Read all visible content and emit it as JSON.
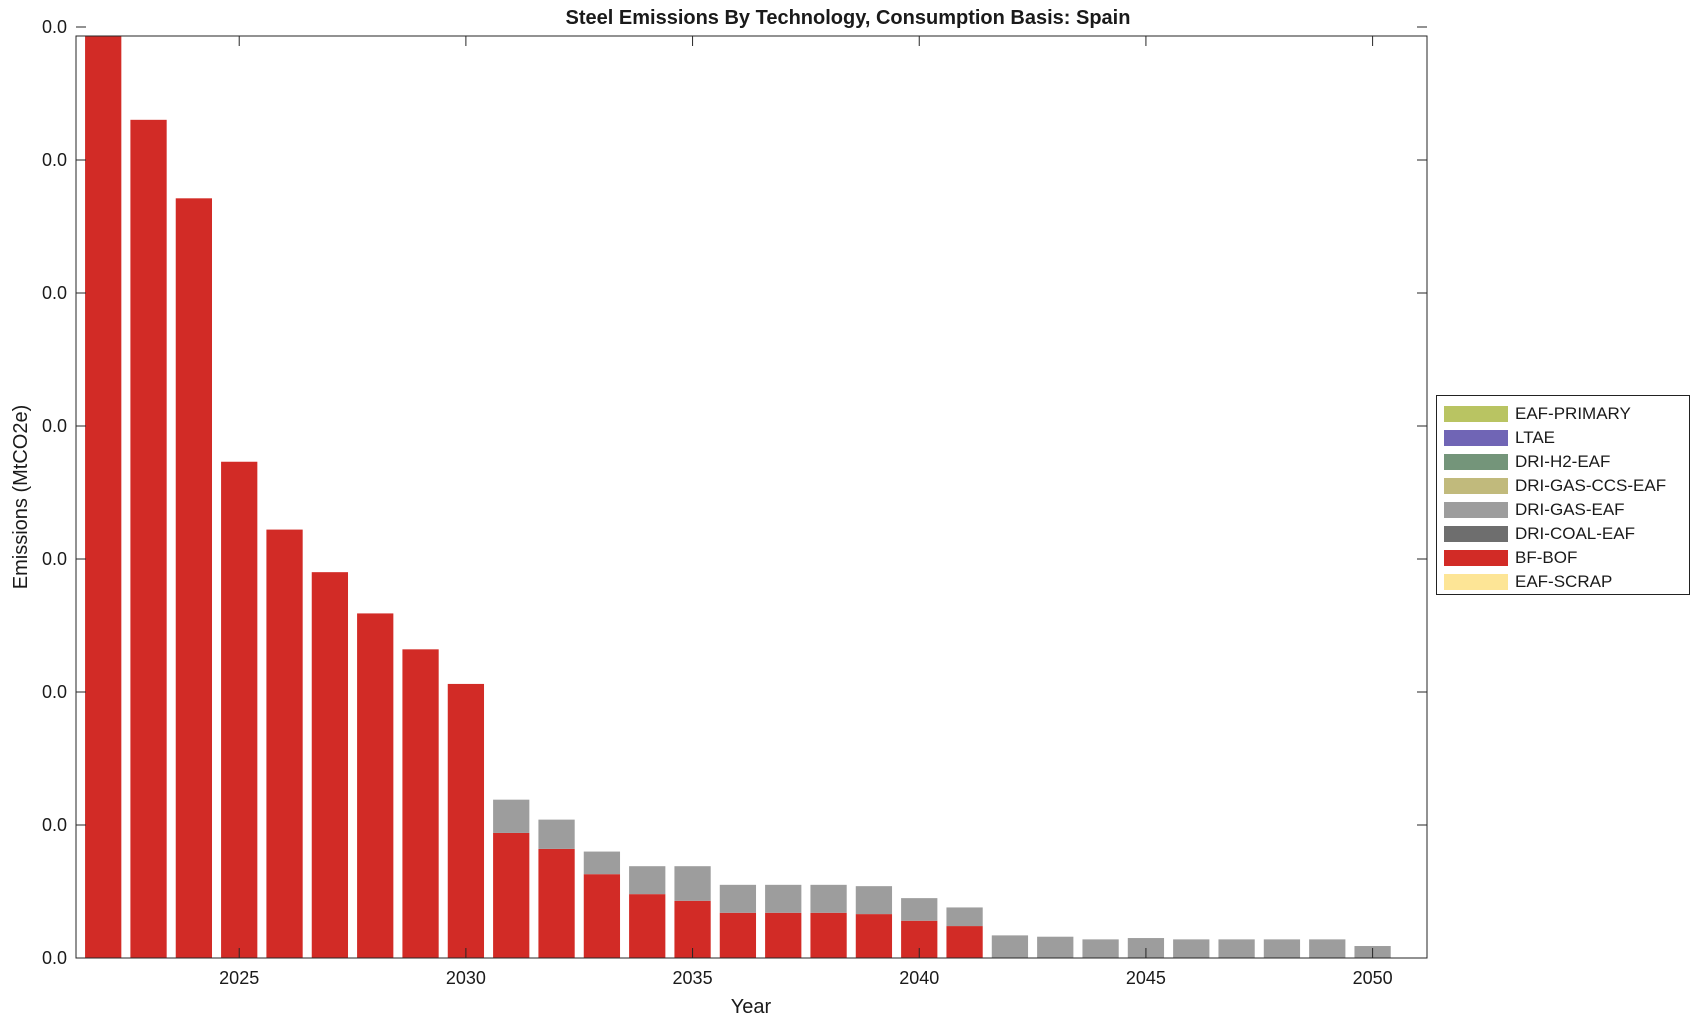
{
  "chart_data": {
    "type": "bar",
    "stacked": true,
    "title": "Steel Emissions By Technology, Consumption Basis: Spain",
    "xlabel": "Year",
    "ylabel": "Emissions (MtCO2e)",
    "x_ticks": [
      2025,
      2030,
      2035,
      2040,
      2045,
      2050
    ],
    "y_tick_labels": [
      "0.0",
      "0.0",
      "0.0",
      "0.0",
      "0.0",
      "0.0",
      "0.0",
      "0.0"
    ],
    "x": [
      2022,
      2023,
      2024,
      2025,
      2026,
      2027,
      2028,
      2029,
      2030,
      2031,
      2032,
      2033,
      2034,
      2035,
      2036,
      2037,
      2038,
      2039,
      2040,
      2041,
      2042,
      2043,
      2044,
      2045,
      2046,
      2047,
      2048,
      2049,
      2050
    ],
    "ylim": [
      0,
      6.93
    ],
    "xlim": [
      2021.4,
      2051.2
    ],
    "grid": false,
    "legend_position": "right",
    "series": [
      {
        "name": "EAF-PRIMARY",
        "color": "#b9c462",
        "values": [
          0,
          0,
          0,
          0,
          0,
          0,
          0,
          0,
          0,
          0,
          0,
          0,
          0,
          0,
          0,
          0,
          0,
          0,
          0,
          0,
          0,
          0,
          0,
          0,
          0,
          0,
          0,
          0,
          0
        ]
      },
      {
        "name": "LTAE",
        "color": "#7065b5",
        "values": [
          0,
          0,
          0,
          0,
          0,
          0,
          0,
          0,
          0,
          0,
          0,
          0,
          0,
          0,
          0,
          0,
          0,
          0,
          0,
          0,
          0,
          0,
          0,
          0,
          0,
          0,
          0,
          0,
          0
        ]
      },
      {
        "name": "DRI-H2-EAF",
        "color": "#74957a",
        "values": [
          0,
          0,
          0,
          0,
          0,
          0,
          0,
          0,
          0,
          0,
          0,
          0,
          0,
          0,
          0,
          0,
          0,
          0,
          0,
          0,
          0,
          0,
          0,
          0,
          0,
          0,
          0,
          0,
          0
        ]
      },
      {
        "name": "DRI-GAS-CCS-EAF",
        "color": "#c1ba7c",
        "values": [
          0,
          0,
          0,
          0,
          0,
          0,
          0,
          0,
          0,
          0,
          0,
          0,
          0,
          0,
          0,
          0,
          0,
          0,
          0,
          0,
          0,
          0,
          0,
          0,
          0,
          0,
          0,
          0,
          0
        ]
      },
      {
        "name": "DRI-GAS-EAF",
        "color": "#9d9d9d",
        "values": [
          0,
          0,
          0,
          0,
          0,
          0,
          0,
          0,
          0,
          0.25,
          0.22,
          0.17,
          0.21,
          0.26,
          0.21,
          0.21,
          0.21,
          0.21,
          0.17,
          0.14,
          0.17,
          0.16,
          0.14,
          0.15,
          0.14,
          0.14,
          0.14,
          0.14,
          0.09
        ]
      },
      {
        "name": "DRI-COAL-EAF",
        "color": "#6e6e6e",
        "values": [
          0,
          0,
          0,
          0,
          0,
          0,
          0,
          0,
          0,
          0,
          0,
          0,
          0,
          0,
          0,
          0,
          0,
          0,
          0,
          0,
          0,
          0,
          0,
          0,
          0,
          0,
          0,
          0,
          0
        ]
      },
      {
        "name": "BF-BOF",
        "color": "#d22b26",
        "values": [
          6.93,
          6.3,
          5.71,
          3.73,
          3.22,
          2.9,
          2.59,
          2.32,
          2.06,
          0.94,
          0.82,
          0.63,
          0.48,
          0.43,
          0.34,
          0.34,
          0.34,
          0.33,
          0.28,
          0.24,
          0,
          0,
          0,
          0,
          0,
          0,
          0,
          0,
          0
        ]
      },
      {
        "name": "EAF-SCRAP",
        "color": "#fde596",
        "values": [
          0,
          0,
          0,
          0,
          0,
          0,
          0,
          0,
          0,
          0,
          0,
          0,
          0,
          0,
          0,
          0,
          0,
          0,
          0,
          0,
          0,
          0,
          0,
          0,
          0,
          0,
          0,
          0,
          0
        ]
      }
    ]
  }
}
